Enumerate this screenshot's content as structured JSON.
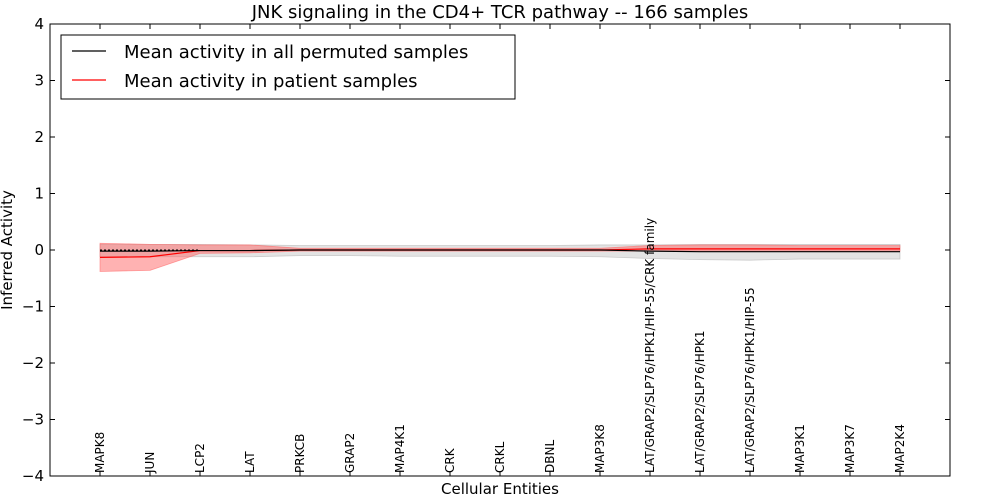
{
  "chart_data": {
    "type": "line",
    "title": "JNK signaling in the CD4+ TCR pathway -- 166 samples",
    "xlabel": "Cellular Entities",
    "ylabel": "Inferred Activity",
    "ylim": [
      -4,
      4
    ],
    "yticks": [
      4,
      3,
      2,
      1,
      0,
      -1,
      -2,
      -3,
      -4
    ],
    "ytick_labels": [
      "4",
      "3",
      "2",
      "1",
      "0",
      "−1",
      "−2",
      "−3",
      "−4"
    ],
    "legend_position": "top-left",
    "categories": [
      "MAPK8",
      "JUN",
      "LCP2",
      "LAT",
      "PRKCB",
      "GRAP2",
      "MAP4K1",
      "CRK",
      "CRKL",
      "DBNL",
      "MAP3K8",
      "LAT/GRAP2/SLP76/HPK1/HIP-55/CRK family",
      "LAT/GRAP2/SLP76/HPK1",
      "LAT/GRAP2/SLP76/HPK1/HIP-55",
      "MAP3K1",
      "MAP3K7",
      "MAP2K4"
    ],
    "series": [
      {
        "name": "Mean activity in all permuted samples",
        "color": "#000000",
        "band_color": "#b0b0b0",
        "values": [
          -0.02,
          -0.02,
          -0.01,
          -0.01,
          0.0,
          0.0,
          0.0,
          0.0,
          0.0,
          0.0,
          0.0,
          -0.02,
          -0.03,
          -0.03,
          -0.03,
          -0.03,
          -0.03
        ],
        "lower": [
          -0.12,
          -0.12,
          -0.12,
          -0.12,
          -0.1,
          -0.1,
          -0.11,
          -0.11,
          -0.11,
          -0.11,
          -0.12,
          -0.15,
          -0.17,
          -0.18,
          -0.16,
          -0.16,
          -0.16
        ],
        "upper": [
          0.1,
          0.1,
          0.1,
          0.09,
          0.08,
          0.08,
          0.08,
          0.08,
          0.08,
          0.08,
          0.09,
          0.09,
          0.1,
          0.1,
          0.1,
          0.1,
          0.1
        ]
      },
      {
        "name": "Mean activity in patient samples",
        "color": "#ff0000",
        "band_color": "#ff6666",
        "values": [
          -0.13,
          -0.12,
          -0.01,
          -0.01,
          0.0,
          0.0,
          0.0,
          0.0,
          0.0,
          0.0,
          0.0,
          0.02,
          0.02,
          0.02,
          0.02,
          0.02,
          0.02
        ],
        "lower": [
          -0.38,
          -0.36,
          -0.06,
          -0.05,
          -0.02,
          -0.02,
          -0.02,
          -0.02,
          -0.02,
          -0.02,
          -0.02,
          -0.02,
          -0.02,
          -0.02,
          -0.02,
          -0.02,
          -0.02
        ],
        "upper": [
          0.12,
          0.1,
          0.09,
          0.09,
          0.03,
          0.03,
          0.03,
          0.03,
          0.03,
          0.03,
          0.03,
          0.08,
          0.09,
          0.09,
          0.08,
          0.08,
          0.08
        ]
      }
    ]
  }
}
